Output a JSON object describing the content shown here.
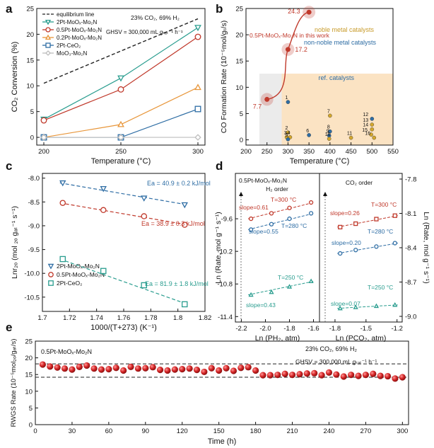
{
  "panel_letters": [
    "a",
    "b",
    "c",
    "d",
    "e"
  ],
  "chart_data": [
    {
      "id": "a",
      "type": "line",
      "xlabel": "Temperature (°C)",
      "ylabel": "CO₂ Conversion (%)",
      "xlim": [
        200,
        300
      ],
      "ylim": [
        -1.5,
        25
      ],
      "xticks": [
        200,
        250,
        300
      ],
      "yticks": [
        0,
        5,
        10,
        15,
        20,
        25
      ],
      "annotations": [
        "23% CO₂, 69% H₂",
        "GHSV = 300,000 mL gₜₐₜ⁻¹ h⁻¹"
      ],
      "legend_position": "top-left",
      "series": [
        {
          "name": "equilibrium line",
          "x": [
            200,
            300
          ],
          "y": [
            10.5,
            23
          ],
          "color": "#222222",
          "dash": true,
          "marker": "none"
        },
        {
          "name": "2Pt-MoOₓ-Mo₂N",
          "x": [
            200,
            250,
            300
          ],
          "y": [
            3.5,
            11.5,
            21.3
          ],
          "color": "#2a9d8f",
          "marker": "tri-down"
        },
        {
          "name": "0.5Pt-MoOₓ-Mo₂N",
          "x": [
            200,
            250,
            300
          ],
          "y": [
            3.3,
            9.3,
            19.5
          ],
          "color": "#c0392b",
          "marker": "circle"
        },
        {
          "name": "0.2Pt-MoOₓ-Mo₂N",
          "x": [
            200,
            250,
            300
          ],
          "y": [
            0,
            2.5,
            9.7
          ],
          "color": "#e8963a",
          "marker": "tri-up"
        },
        {
          "name": "2Pt-CeO₂",
          "x": [
            200,
            250,
            300
          ],
          "y": [
            0,
            0,
            5.5
          ],
          "color": "#2e6da4",
          "marker": "square"
        },
        {
          "name": "MoO₃-Mo₂N",
          "x": [
            200,
            250,
            300
          ],
          "y": [
            0,
            0,
            0
          ],
          "color": "#bdbdbd",
          "marker": "diamond"
        }
      ]
    },
    {
      "id": "b",
      "type": "scatter",
      "xlabel": "Temperature (°C)",
      "ylabel": "CO Formation Rate (10⁻⁵mol/gₜ/s)",
      "xlim": [
        200,
        550
      ],
      "ylim": [
        -1,
        25
      ],
      "xticks": [
        200,
        250,
        300,
        350,
        400,
        450,
        500,
        550
      ],
      "yticks": [
        0,
        5,
        10,
        15,
        20,
        25
      ],
      "highlight_series": {
        "name": "0.5Pt-MoOₓ-Mo₂N in this work",
        "x": [
          250,
          300,
          350
        ],
        "y": [
          7.7,
          17.2,
          24.3
        ],
        "labels": [
          "7.7",
          "17.2",
          "24.3"
        ],
        "color": "#c0392b"
      },
      "region_label": "ref. catalysts",
      "legend_text": [
        "noble metal catalysts",
        "non-noble metal catalysts"
      ],
      "ref_points": [
        {
          "label": "1",
          "x": 300,
          "y": 7.2,
          "kind": "non-noble"
        },
        {
          "label": "2",
          "x": 300,
          "y": 1.4,
          "kind": "noble"
        },
        {
          "label": "3",
          "x": 297,
          "y": 0.5,
          "kind": "noble"
        },
        {
          "label": "4",
          "x": 305,
          "y": 0.5,
          "kind": "noble"
        },
        {
          "label": "5",
          "x": 300,
          "y": 0.1,
          "kind": "non-noble"
        },
        {
          "label": "6",
          "x": 350,
          "y": 0.9,
          "kind": "non-noble"
        },
        {
          "label": "7",
          "x": 400,
          "y": 4.6,
          "kind": "noble"
        },
        {
          "label": "8",
          "x": 400,
          "y": 1.6,
          "kind": "non-noble"
        },
        {
          "label": "9",
          "x": 398,
          "y": 0.8,
          "kind": "non-noble"
        },
        {
          "label": "10",
          "x": 398,
          "y": 0.2,
          "kind": "noble"
        },
        {
          "label": "11",
          "x": 450,
          "y": 0.4,
          "kind": "noble"
        },
        {
          "label": "12",
          "x": 500,
          "y": 4.0,
          "kind": "non-noble"
        },
        {
          "label": "13",
          "x": 500,
          "y": 2.9,
          "kind": "noble"
        },
        {
          "label": "14",
          "x": 500,
          "y": 2.0,
          "kind": "noble"
        },
        {
          "label": "15",
          "x": 498,
          "y": 1.0,
          "kind": "noble"
        },
        {
          "label": "16",
          "x": 505,
          "y": 0.4,
          "kind": "noble"
        }
      ]
    },
    {
      "id": "c",
      "type": "scatter",
      "xlabel": "1000/(T+273) (K⁻¹)",
      "ylabel": "Lnr₂ₒ (mol ₂ₒ gₐₜ⁻¹ s⁻¹)",
      "xlim": [
        1.7,
        1.82
      ],
      "ylim": [
        -10.8,
        -7.9
      ],
      "xticks": [
        1.7,
        1.72,
        1.74,
        1.76,
        1.78,
        1.8,
        1.82
      ],
      "yticks": [
        -8.0,
        -8.5,
        -9.0,
        -9.5,
        -10.0,
        -10.5
      ],
      "legend_position": "bottom-left",
      "series": [
        {
          "name": "2Pt-MoOₓ-Mo₂N",
          "x": [
            1.715,
            1.745,
            1.775,
            1.805
          ],
          "y": [
            -8.1,
            -8.22,
            -8.42,
            -8.56
          ],
          "color": "#2e6da4",
          "marker": "tri-down",
          "fit": "Ea = 40.9 ± 0.2 kJ/mol"
        },
        {
          "name": "0.5Pt-MoOₓ-Mo₂N",
          "x": [
            1.715,
            1.745,
            1.775,
            1.805
          ],
          "y": [
            -8.52,
            -8.67,
            -8.8,
            -8.98
          ],
          "color": "#c0392b",
          "marker": "circle",
          "fit": "Ea = 38.9 ± 0.3 kJ/mol"
        },
        {
          "name": "2Pt-CeO₂",
          "x": [
            1.715,
            1.745,
            1.775,
            1.805
          ],
          "y": [
            -9.7,
            -9.95,
            -10.25,
            -10.65
          ],
          "color": "#2a9d8f",
          "marker": "square",
          "fit": "Ea = 81.9 ± 1.8 kJ/mol"
        }
      ]
    },
    {
      "id": "d",
      "type": "scatter",
      "ylabel_left": "Ln (Rate, mol g⁻¹ s⁻¹)",
      "ylabel_right": "Ln (Rate, mol g⁻¹ s⁻¹)",
      "sample": "0.5Pt-MoOₓ-Mo₂N",
      "subplots": [
        {
          "title": "H₂ order",
          "xlabel": "Ln (PH₂, atm)",
          "xlim": [
            -2.25,
            -1.55
          ],
          "xticks": [
            -2.2,
            -2.0,
            -1.8,
            -1.6
          ],
          "ylim": [
            -11.5,
            -9.0
          ],
          "yticks": [
            -9.6,
            -10.2,
            -10.8,
            -11.4
          ],
          "series": [
            {
              "temp": "T=300 °C",
              "slope": "slope=0.61",
              "x": [
                -2.12,
                -1.95,
                -1.8,
                -1.62
              ],
              "y": [
                -9.6,
                -9.5,
                -9.4,
                -9.3
              ],
              "color": "#c0392b",
              "marker": "circle"
            },
            {
              "temp": "T=280 °C",
              "slope": "slope=0.55",
              "x": [
                -2.12,
                -1.95,
                -1.8,
                -1.62
              ],
              "y": [
                -9.8,
                -9.7,
                -9.6,
                -9.5
              ],
              "color": "#2e6da4",
              "marker": "circle"
            },
            {
              "temp": "T=250 °C",
              "slope": "slope=0.43",
              "x": [
                -2.12,
                -1.95,
                -1.8,
                -1.62
              ],
              "y": [
                -11.0,
                -10.95,
                -10.85,
                -10.75
              ],
              "color": "#2a9d8f",
              "marker": "tri-up"
            }
          ]
        },
        {
          "title": "CO₂ order",
          "xlabel": "Ln (PCO₂, atm)",
          "xlim": [
            -1.95,
            -1.15
          ],
          "xticks": [
            -1.8,
            -1.5,
            -1.2
          ],
          "ylim": [
            -9.0,
            -7.8
          ],
          "yticks": [
            -7.8,
            -8.1,
            -8.4,
            -8.7,
            -9.0
          ],
          "series": [
            {
              "temp": "T=300 °C",
              "slope": "slope=0.26",
              "x": [
                -1.75,
                -1.6,
                -1.4,
                -1.22
              ],
              "y": [
                -8.22,
                -8.19,
                -8.15,
                -8.12
              ],
              "color": "#c0392b",
              "marker": "square"
            },
            {
              "temp": "T=280 °C",
              "slope": "slope=0.20",
              "x": [
                -1.75,
                -1.6,
                -1.4,
                -1.22
              ],
              "y": [
                -8.45,
                -8.42,
                -8.39,
                -8.36
              ],
              "color": "#2e6da4",
              "marker": "circle"
            },
            {
              "temp": "T=250 °C",
              "slope": "slope=0.07",
              "x": [
                -1.75,
                -1.6,
                -1.4,
                -1.22
              ],
              "y": [
                -8.93,
                -8.92,
                -8.91,
                -8.9
              ],
              "color": "#2a9d8f",
              "marker": "tri-up"
            }
          ]
        }
      ]
    },
    {
      "id": "e",
      "type": "scatter",
      "title": "0.5Pt-MoOₓ-Mo₂N",
      "xlabel": "Time (h)",
      "ylabel": "RWGS Rate (10⁻⁵mol₂ₒ/gₐₜ/s)",
      "xlim": [
        0,
        305
      ],
      "ylim": [
        0,
        25
      ],
      "xticks": [
        0,
        30,
        60,
        90,
        120,
        150,
        180,
        210,
        240,
        270,
        300
      ],
      "yticks": [
        0,
        5,
        10,
        15,
        20,
        25
      ],
      "annotations": [
        "23% CO₂, 69% H₂",
        "GHSV = 300,000 mL gₜₐₜ⁻¹ h⁻¹"
      ],
      "reference_lines": [
        18.2,
        14.2
      ],
      "color": "#d62728",
      "x": [
        6,
        12,
        18,
        24,
        30,
        36,
        42,
        48,
        54,
        60,
        66,
        72,
        78,
        84,
        90,
        96,
        102,
        108,
        114,
        120,
        126,
        132,
        138,
        144,
        150,
        156,
        162,
        168,
        174,
        180,
        186,
        192,
        198,
        204,
        210,
        216,
        222,
        228,
        234,
        240,
        246,
        252,
        258,
        264,
        270,
        276,
        282,
        288,
        294,
        300
      ],
      "y": [
        18.0,
        17.4,
        17.1,
        16.8,
        16.5,
        17.3,
        17.7,
        16.8,
        16.5,
        16.6,
        17.0,
        16.2,
        17.3,
        16.8,
        16.9,
        17.2,
        16.4,
        16.2,
        16.5,
        16.6,
        16.8,
        16.4,
        15.8,
        16.9,
        16.2,
        16.9,
        16.1,
        17.0,
        17.2,
        16.2,
        14.8,
        14.8,
        14.9,
        15.2,
        14.9,
        15.1,
        15.3,
        15.4,
        14.8,
        15.6,
        15.0,
        14.4,
        14.9,
        14.6,
        14.9,
        15.2,
        14.6,
        14.5,
        13.8,
        14.2
      ]
    }
  ]
}
